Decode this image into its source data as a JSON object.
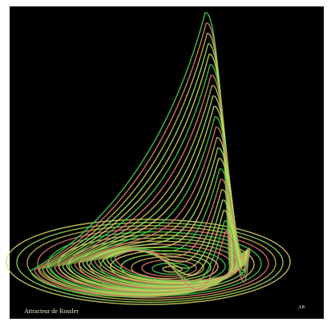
{
  "caption": "Attracteur de Rossler",
  "signature": "AR"
}
